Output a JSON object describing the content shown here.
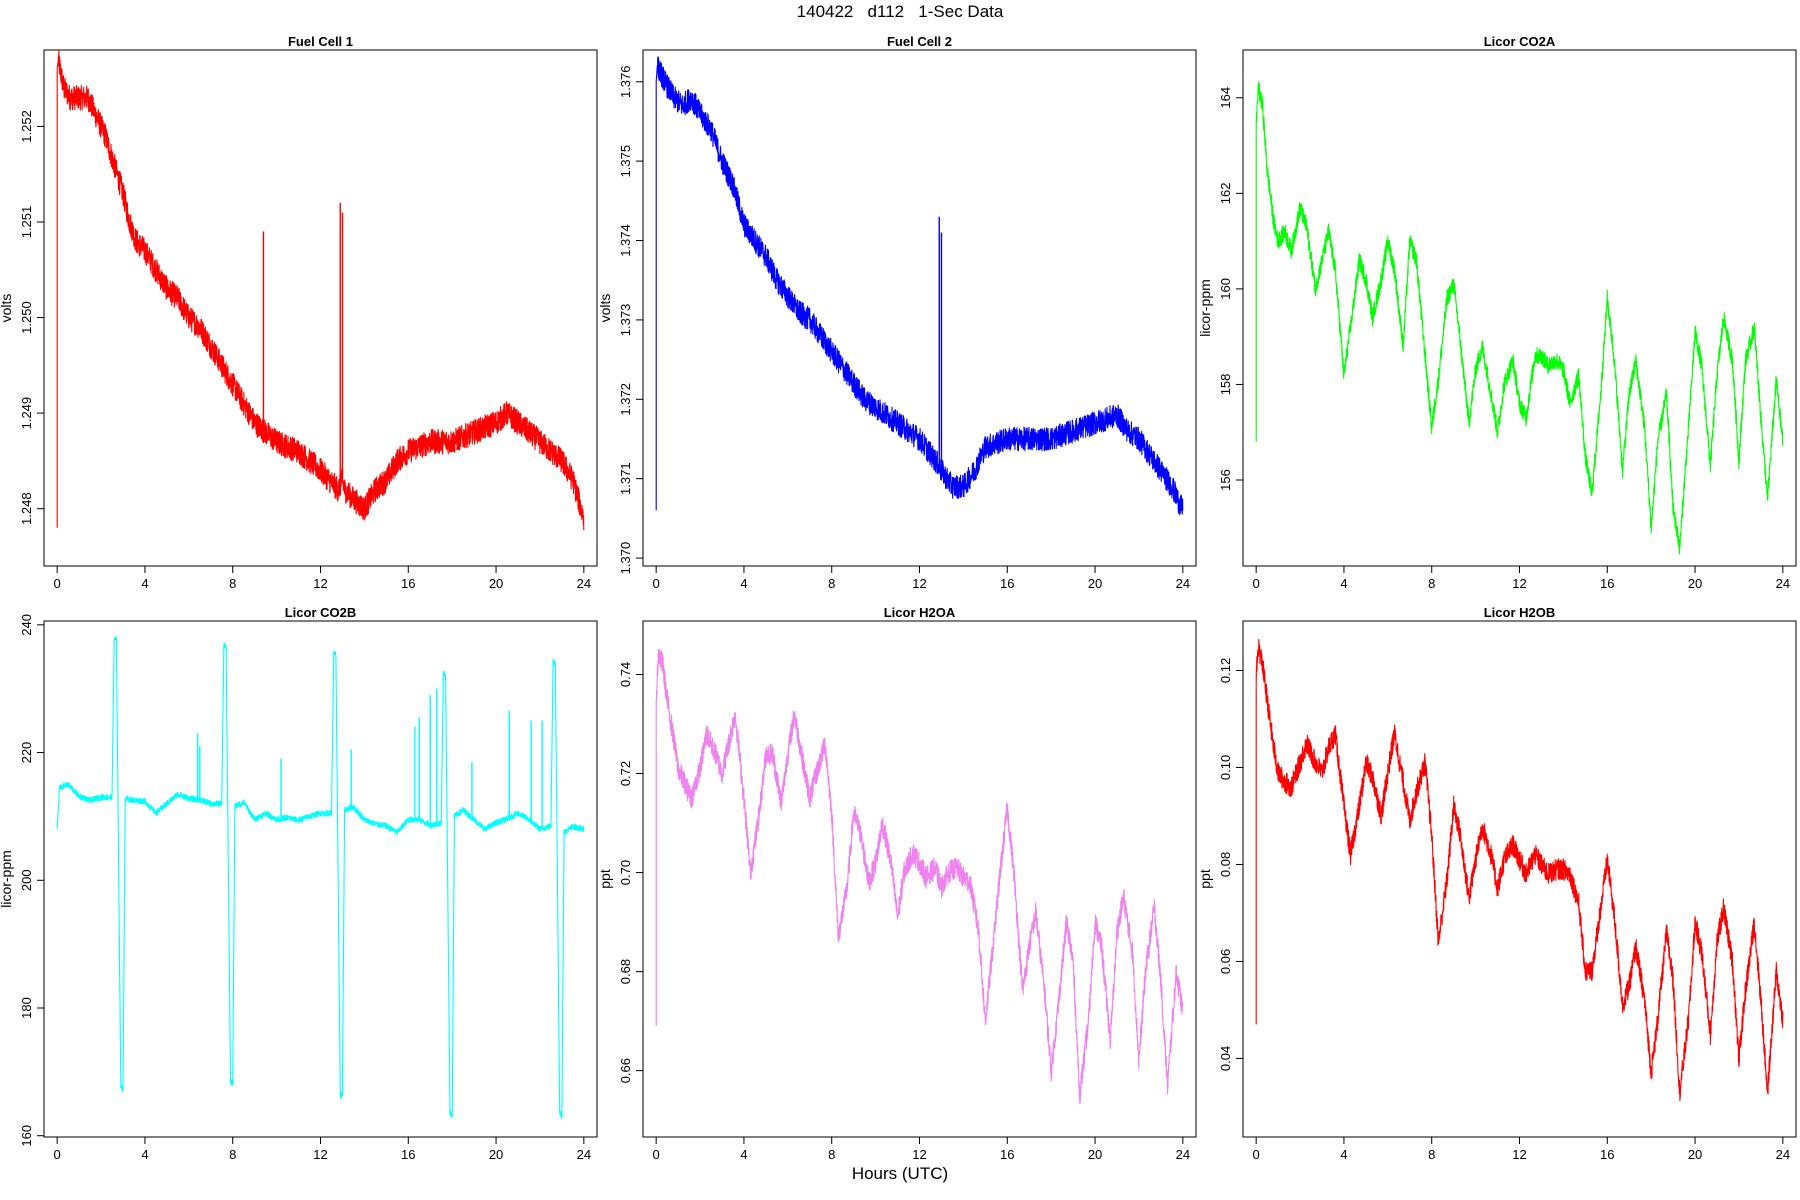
{
  "title": "140422   d112   1-Sec Data",
  "xlabel": "Hours (UTC)",
  "chart_data": [
    {
      "type": "line",
      "title": "Fuel Cell 1",
      "ylabel": "volts",
      "color": "#ff0000",
      "xlim": [
        -0.6,
        24.6
      ],
      "ylim": [
        1.2474,
        1.2528
      ],
      "xticks": [
        "0",
        "4",
        "8",
        "12",
        "16",
        "20",
        "24"
      ],
      "yticks": [
        "1.248",
        "1.249",
        "1.250",
        "1.251",
        "1.252"
      ],
      "noise": 0.00013,
      "x": [
        0.0,
        0.0,
        0.05,
        0.3,
        0.6,
        1.0,
        1.4,
        1.8,
        2.2,
        2.6,
        3.0,
        3.3,
        3.6,
        4.0,
        4.5,
        5.0,
        5.5,
        6.0,
        6.5,
        7.0,
        7.5,
        8.0,
        8.5,
        9.0,
        9.5,
        10.0,
        11.0,
        12.0,
        12.8,
        13.0,
        13.1,
        13.5,
        14.0,
        14.5,
        15.0,
        15.5,
        16.0,
        17.0,
        18.0,
        19.0,
        20.0,
        20.5,
        21.0,
        21.5,
        22.0,
        22.5,
        23.0,
        23.5,
        24.0
      ],
      "y": [
        1.2478,
        1.2526,
        1.2527,
        1.2524,
        1.2523,
        1.2523,
        1.2523,
        1.2521,
        1.2519,
        1.2516,
        1.2513,
        1.251,
        1.2508,
        1.2507,
        1.2505,
        1.2503,
        1.2502,
        1.25,
        1.2499,
        1.2497,
        1.2495,
        1.2493,
        1.2491,
        1.2489,
        1.2488,
        1.2487,
        1.2486,
        1.2484,
        1.2482,
        1.2483,
        1.2482,
        1.2481,
        1.248,
        1.2482,
        1.2483,
        1.2485,
        1.2486,
        1.2487,
        1.2487,
        1.2488,
        1.2489,
        1.249,
        1.2489,
        1.2488,
        1.2487,
        1.2486,
        1.2485,
        1.2483,
        1.2479
      ],
      "spikes": [
        [
          9.4,
          1.2509
        ],
        [
          12.9,
          1.2512
        ],
        [
          13.0,
          1.2511
        ]
      ]
    },
    {
      "type": "line",
      "title": "Fuel Cell 2",
      "ylabel": "volts",
      "color": "#0000ff",
      "xlim": [
        -0.6,
        24.6
      ],
      "ylim": [
        1.3699,
        1.3764
      ],
      "xticks": [
        "0",
        "4",
        "8",
        "12",
        "16",
        "20",
        "24"
      ],
      "yticks": [
        "1.370",
        "1.371",
        "1.372",
        "1.373",
        "1.374",
        "1.375",
        "1.376"
      ],
      "noise": 0.00015,
      "x": [
        0.0,
        0.0,
        0.05,
        0.4,
        0.8,
        1.2,
        1.6,
        2.0,
        2.5,
        3.0,
        3.5,
        4.0,
        4.5,
        5.0,
        5.5,
        6.0,
        6.5,
        7.0,
        7.5,
        8.0,
        8.5,
        9.0,
        9.5,
        10.0,
        11.0,
        12.0,
        12.8,
        13.0,
        13.5,
        14.0,
        14.5,
        15.0,
        16.0,
        17.0,
        18.0,
        19.0,
        20.0,
        21.0,
        21.5,
        22.0,
        22.5,
        23.0,
        23.5,
        24.0
      ],
      "y": [
        1.3706,
        1.376,
        1.3762,
        1.376,
        1.3758,
        1.3757,
        1.3758,
        1.3756,
        1.3754,
        1.375,
        1.3747,
        1.3742,
        1.374,
        1.3738,
        1.3735,
        1.3733,
        1.3731,
        1.373,
        1.3728,
        1.3726,
        1.3724,
        1.3722,
        1.372,
        1.3719,
        1.3717,
        1.3715,
        1.3712,
        1.3711,
        1.3709,
        1.3709,
        1.3711,
        1.3714,
        1.3715,
        1.3715,
        1.3715,
        1.3716,
        1.3717,
        1.3718,
        1.3716,
        1.3715,
        1.3713,
        1.3711,
        1.3709,
        1.3706
      ],
      "spikes": [
        [
          12.9,
          1.3743
        ],
        [
          13.0,
          1.3741
        ]
      ]
    },
    {
      "type": "line",
      "title": "Licor CO2A",
      "ylabel": "licor-ppm",
      "color": "#00ff00",
      "xlim": [
        -0.6,
        24.6
      ],
      "ylim": [
        154.2,
        165.0
      ],
      "xticks": [
        "0",
        "4",
        "8",
        "12",
        "16",
        "20",
        "24"
      ],
      "yticks": [
        "156",
        "158",
        "160",
        "162",
        "164"
      ],
      "noise": 0.18,
      "x": [
        0.0,
        0.0,
        0.1,
        0.3,
        0.5,
        0.8,
        1.0,
        1.3,
        1.6,
        2.0,
        2.3,
        2.7,
        3.0,
        3.3,
        3.6,
        4.0,
        4.3,
        4.7,
        5.0,
        5.3,
        5.7,
        6.0,
        6.3,
        6.7,
        7.0,
        7.3,
        7.7,
        8.0,
        8.3,
        8.7,
        9.0,
        9.3,
        9.7,
        10.0,
        10.3,
        10.7,
        11.0,
        11.3,
        11.7,
        12.0,
        12.3,
        12.7,
        13.0,
        13.3,
        13.7,
        14.0,
        14.3,
        14.7,
        15.0,
        15.3,
        15.7,
        16.0,
        16.3,
        16.7,
        17.0,
        17.3,
        17.7,
        18.0,
        18.3,
        18.7,
        19.0,
        19.3,
        19.7,
        20.0,
        20.3,
        20.7,
        21.0,
        21.3,
        21.7,
        22.0,
        22.3,
        22.7,
        23.0,
        23.3,
        23.7,
        24.0
      ],
      "y": [
        156.8,
        163.5,
        164.2,
        163.8,
        162.5,
        161.4,
        161.0,
        161.2,
        160.8,
        161.7,
        161.3,
        160.0,
        160.6,
        161.2,
        160.4,
        158.2,
        159.2,
        160.6,
        160.2,
        159.4,
        160.2,
        161.0,
        160.4,
        158.8,
        161.0,
        160.6,
        158.6,
        157.1,
        158.1,
        159.8,
        160.1,
        158.9,
        157.2,
        158.3,
        158.8,
        157.8,
        157.0,
        158.0,
        158.5,
        157.6,
        157.3,
        158.6,
        158.6,
        158.4,
        158.5,
        158.3,
        157.6,
        158.2,
        156.5,
        155.7,
        157.8,
        159.8,
        158.6,
        156.2,
        157.8,
        158.5,
        157.1,
        155.0,
        156.8,
        157.8,
        155.4,
        154.6,
        157.1,
        159.1,
        158.4,
        156.3,
        158.2,
        159.4,
        158.5,
        156.4,
        158.5,
        159.2,
        157.3,
        155.6,
        158.1,
        156.8
      ],
      "spikes": []
    },
    {
      "type": "line",
      "title": "Licor CO2B",
      "ylabel": "licor-ppm",
      "color": "#00ffff",
      "xlim": [
        -0.6,
        24.6
      ],
      "ylim": [
        159.8,
        240.6
      ],
      "xticks": [
        "0",
        "4",
        "8",
        "12",
        "16",
        "20",
        "24"
      ],
      "yticks": [
        "160",
        "180",
        "200",
        "220",
        "240"
      ],
      "noise": 0.45,
      "x": [
        0.0,
        0.1,
        0.5,
        1.0,
        1.5,
        2.0,
        2.5,
        2.6,
        2.7,
        2.9,
        3.0,
        3.1,
        3.5,
        4.0,
        4.5,
        5.0,
        5.5,
        6.0,
        6.5,
        7.0,
        7.5,
        7.6,
        7.7,
        7.9,
        8.0,
        8.1,
        8.5,
        9.0,
        9.5,
        10.0,
        10.5,
        11.0,
        11.5,
        12.0,
        12.5,
        12.6,
        12.7,
        12.9,
        13.0,
        13.1,
        13.5,
        14.0,
        14.5,
        15.0,
        15.5,
        16.0,
        16.5,
        17.0,
        17.5,
        17.6,
        17.7,
        17.9,
        18.0,
        18.1,
        18.5,
        19.0,
        19.5,
        20.0,
        20.5,
        21.0,
        21.5,
        22.0,
        22.5,
        22.6,
        22.7,
        22.9,
        23.0,
        23.1,
        23.5,
        24.0
      ],
      "y": [
        208.0,
        214.5,
        215.0,
        213.2,
        212.5,
        213.0,
        213.0,
        237.8,
        237.6,
        167.8,
        167.3,
        212.8,
        212.5,
        212.4,
        210.5,
        212.0,
        213.5,
        212.8,
        212.6,
        212.0,
        212.0,
        237.0,
        236.4,
        168.6,
        168.1,
        211.6,
        212.2,
        209.5,
        210.5,
        209.5,
        209.8,
        209.4,
        210.0,
        210.5,
        210.5,
        235.5,
        235.3,
        166.2,
        166.5,
        211.0,
        211.5,
        209.5,
        208.8,
        208.5,
        207.5,
        209.5,
        209.5,
        208.6,
        209.0,
        232.4,
        232.0,
        163.6,
        163.2,
        210.0,
        211.0,
        209.5,
        208.0,
        209.0,
        209.6,
        210.5,
        209.5,
        208.0,
        208.5,
        234.4,
        234.0,
        163.6,
        163.0,
        207.5,
        208.4,
        208.0
      ],
      "spikes": [
        [
          6.4,
          223.0
        ],
        [
          6.5,
          221.0
        ],
        [
          10.2,
          219.0
        ],
        [
          13.4,
          220.5
        ],
        [
          16.3,
          224.0
        ],
        [
          16.5,
          225.5
        ],
        [
          17.0,
          229.0
        ],
        [
          17.3,
          230.0
        ],
        [
          18.9,
          218.5
        ],
        [
          20.6,
          226.5
        ],
        [
          21.6,
          225.0
        ],
        [
          22.1,
          225.0
        ]
      ]
    },
    {
      "type": "line",
      "title": "Licor H2OA",
      "ylabel": "ppt",
      "color": "#ee82ee",
      "xlim": [
        -0.6,
        24.6
      ],
      "ylim": [
        0.6466,
        0.7508
      ],
      "xticks": [
        "0",
        "4",
        "8",
        "12",
        "16",
        "20",
        "24"
      ],
      "yticks": [
        "0.66",
        "0.68",
        "0.70",
        "0.72",
        "0.74"
      ],
      "noise": 0.0022,
      "x": [
        0.0,
        0.0,
        0.1,
        0.3,
        0.5,
        0.8,
        1.0,
        1.3,
        1.6,
        2.0,
        2.3,
        2.7,
        3.0,
        3.3,
        3.6,
        4.0,
        4.3,
        4.7,
        5.0,
        5.3,
        5.7,
        6.0,
        6.3,
        6.7,
        7.0,
        7.3,
        7.7,
        8.0,
        8.3,
        8.7,
        9.0,
        9.3,
        9.7,
        10.0,
        10.3,
        10.7,
        11.0,
        11.3,
        11.7,
        12.0,
        12.3,
        12.7,
        13.0,
        13.3,
        13.7,
        14.0,
        14.3,
        14.7,
        15.0,
        15.3,
        15.7,
        16.0,
        16.3,
        16.7,
        17.0,
        17.3,
        17.7,
        18.0,
        18.3,
        18.7,
        19.0,
        19.3,
        19.7,
        20.0,
        20.3,
        20.7,
        21.0,
        21.3,
        21.7,
        22.0,
        22.3,
        22.7,
        23.0,
        23.3,
        23.7,
        24.0
      ],
      "y": [
        0.669,
        0.735,
        0.744,
        0.742,
        0.735,
        0.727,
        0.721,
        0.718,
        0.715,
        0.721,
        0.728,
        0.724,
        0.72,
        0.726,
        0.732,
        0.715,
        0.7,
        0.712,
        0.724,
        0.724,
        0.714,
        0.724,
        0.732,
        0.722,
        0.715,
        0.72,
        0.726,
        0.712,
        0.687,
        0.697,
        0.712,
        0.708,
        0.698,
        0.702,
        0.71,
        0.702,
        0.691,
        0.7,
        0.704,
        0.702,
        0.699,
        0.701,
        0.697,
        0.7,
        0.701,
        0.699,
        0.698,
        0.688,
        0.67,
        0.683,
        0.701,
        0.713,
        0.7,
        0.676,
        0.685,
        0.692,
        0.676,
        0.66,
        0.672,
        0.69,
        0.682,
        0.655,
        0.67,
        0.69,
        0.685,
        0.666,
        0.688,
        0.695,
        0.684,
        0.662,
        0.68,
        0.693,
        0.678,
        0.657,
        0.68,
        0.672
      ],
      "spikes": []
    },
    {
      "type": "line",
      "title": "Licor H2OB",
      "ylabel": "ppt",
      "color": "#ff0000",
      "xlim": [
        -0.6,
        24.6
      ],
      "ylim": [
        0.0238,
        0.1302
      ],
      "xticks": [
        "0",
        "4",
        "8",
        "12",
        "16",
        "20",
        "24"
      ],
      "yticks": [
        "0.04",
        "0.06",
        "0.08",
        "0.10",
        "0.12"
      ],
      "noise": 0.0022,
      "x": [
        0.0,
        0.0,
        0.1,
        0.3,
        0.5,
        0.8,
        1.0,
        1.3,
        1.6,
        2.0,
        2.3,
        2.7,
        3.0,
        3.3,
        3.6,
        4.0,
        4.3,
        4.7,
        5.0,
        5.3,
        5.7,
        6.0,
        6.3,
        6.7,
        7.0,
        7.3,
        7.7,
        8.0,
        8.3,
        8.7,
        9.0,
        9.3,
        9.7,
        10.0,
        10.3,
        10.7,
        11.0,
        11.3,
        11.7,
        12.0,
        12.3,
        12.7,
        13.0,
        13.3,
        13.7,
        14.0,
        14.3,
        14.7,
        15.0,
        15.3,
        15.7,
        16.0,
        16.3,
        16.7,
        17.0,
        17.3,
        17.7,
        18.0,
        18.3,
        18.7,
        19.0,
        19.3,
        19.7,
        20.0,
        20.3,
        20.7,
        21.0,
        21.3,
        21.7,
        22.0,
        22.3,
        22.7,
        23.0,
        23.3,
        23.7,
        24.0
      ],
      "y": [
        0.047,
        0.119,
        0.125,
        0.121,
        0.114,
        0.104,
        0.099,
        0.097,
        0.096,
        0.101,
        0.105,
        0.101,
        0.099,
        0.104,
        0.107,
        0.092,
        0.082,
        0.092,
        0.101,
        0.098,
        0.09,
        0.099,
        0.107,
        0.097,
        0.089,
        0.095,
        0.101,
        0.086,
        0.064,
        0.077,
        0.092,
        0.086,
        0.073,
        0.081,
        0.088,
        0.082,
        0.075,
        0.081,
        0.084,
        0.081,
        0.078,
        0.082,
        0.08,
        0.078,
        0.079,
        0.079,
        0.078,
        0.072,
        0.058,
        0.058,
        0.071,
        0.081,
        0.07,
        0.051,
        0.055,
        0.063,
        0.052,
        0.037,
        0.048,
        0.066,
        0.056,
        0.033,
        0.048,
        0.068,
        0.062,
        0.045,
        0.064,
        0.071,
        0.06,
        0.04,
        0.054,
        0.068,
        0.052,
        0.033,
        0.058,
        0.048
      ],
      "spikes": []
    }
  ]
}
